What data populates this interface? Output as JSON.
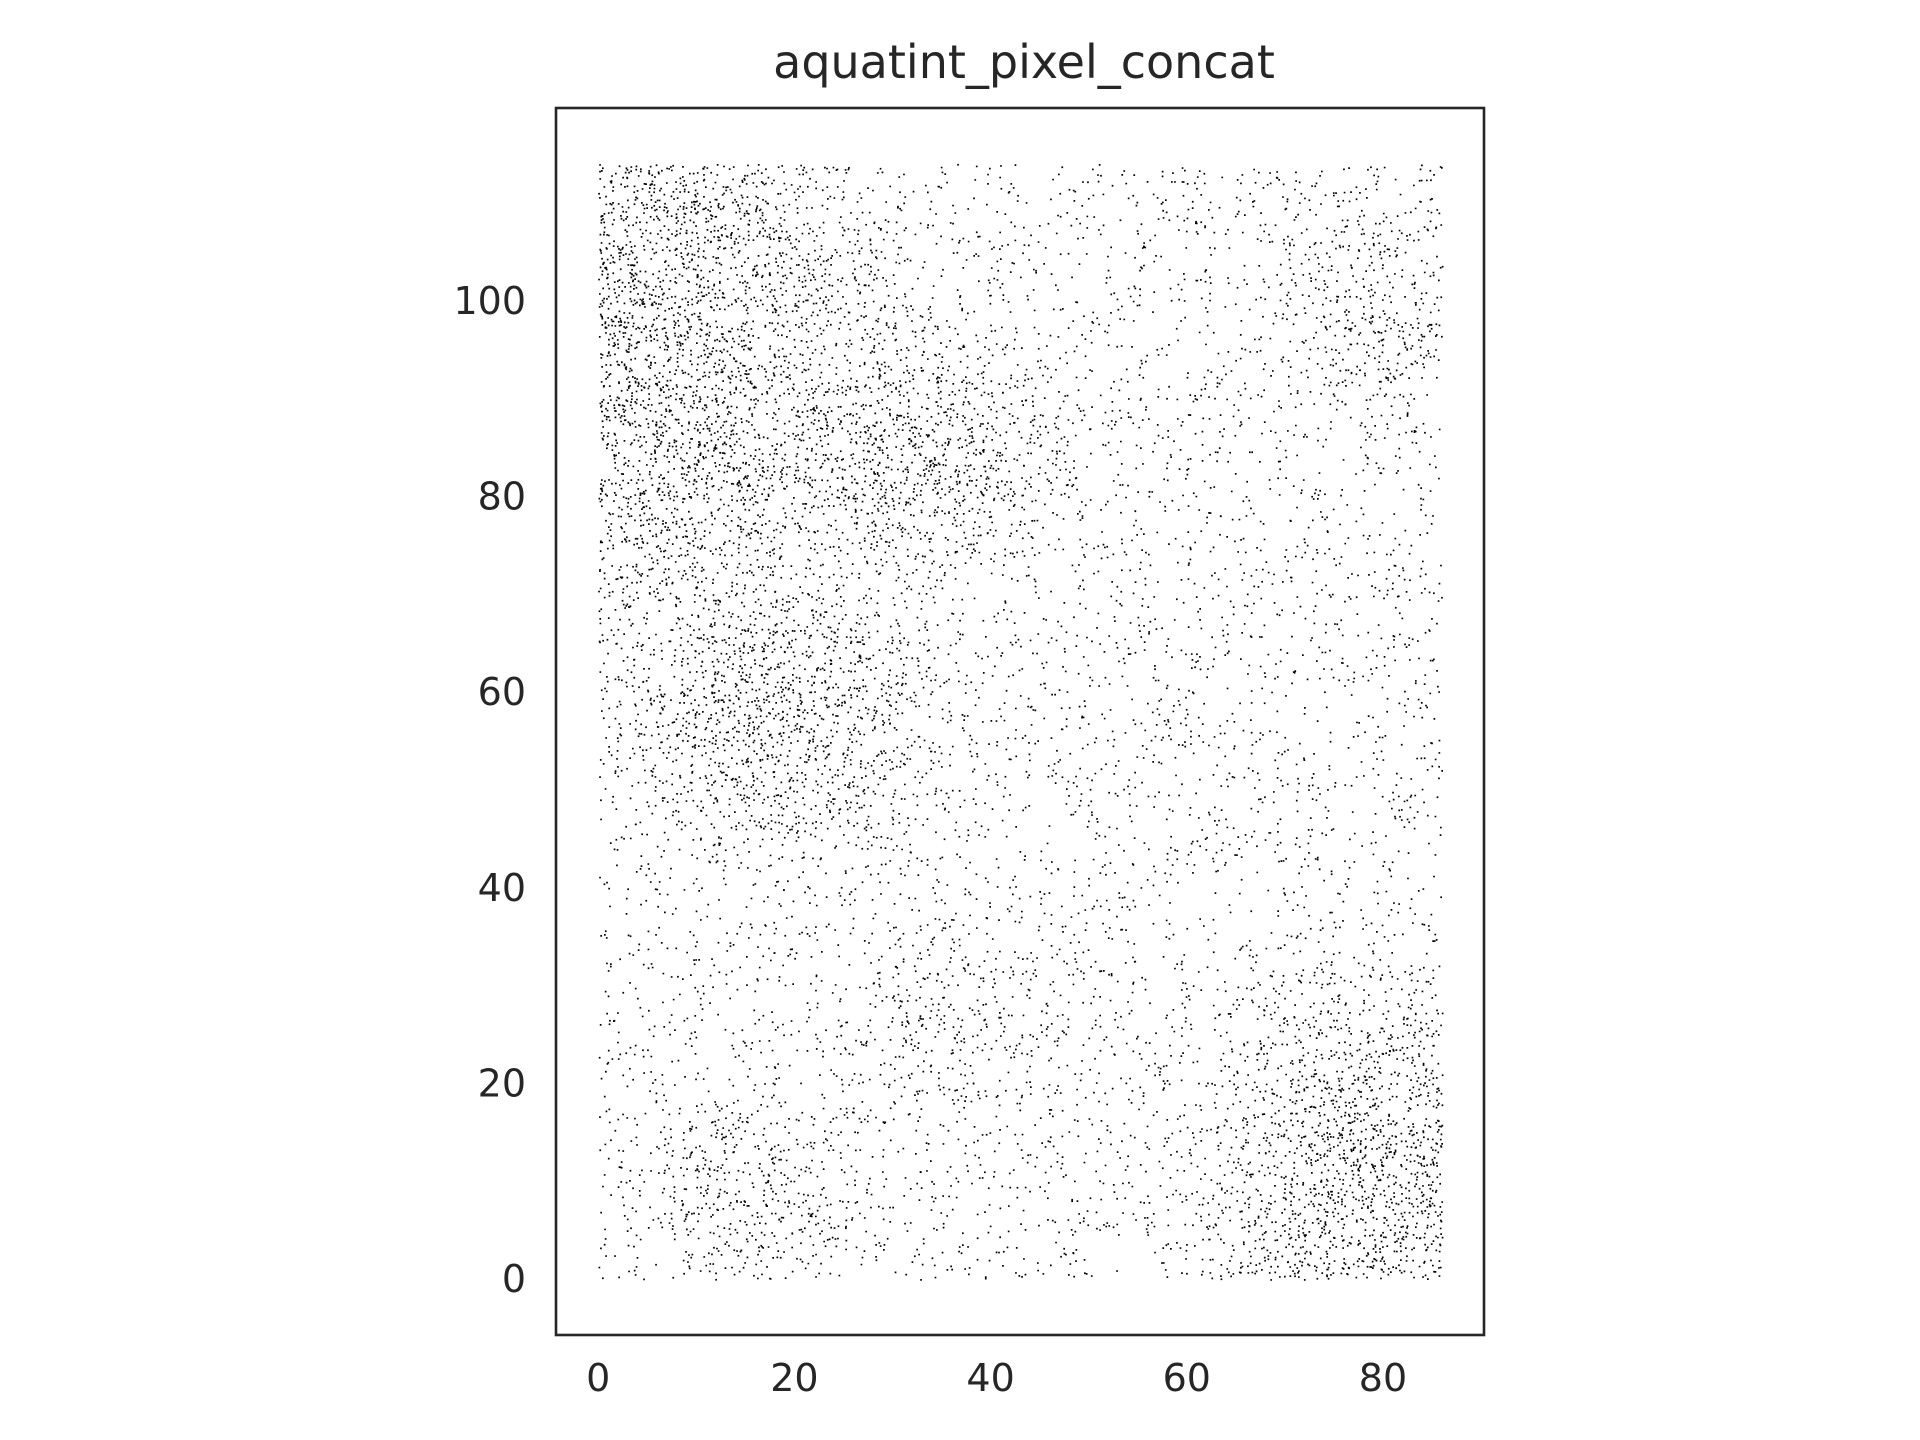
{
  "chart_data": {
    "type": "scatter",
    "title": "aquatint_pixel_concat",
    "xlabel": "",
    "ylabel": "",
    "xlim": [
      -4.3,
      90.3
    ],
    "ylim": [
      -5.7,
      119.7
    ],
    "grid": false,
    "legend": "none",
    "x_ticks": [
      0,
      20,
      40,
      60,
      80
    ],
    "y_ticks": [
      0,
      20,
      40,
      60,
      80,
      100
    ],
    "point_color": "#000000",
    "frame_color": "#262626",
    "data_extent": {
      "x": [
        0,
        86
      ],
      "y": [
        0,
        114
      ]
    },
    "density_field": {
      "description": "stochastic aquatint stipple; point density per unit area varies with tone",
      "base_density": 0.18,
      "dark_regions": [
        {
          "name": "upper-left band",
          "center": [
            8,
            95
          ],
          "sigma": [
            14,
            22
          ],
          "density": 1.0
        },
        {
          "name": "diagonal band",
          "center": [
            30,
            85
          ],
          "sigma": [
            12,
            10
          ],
          "density": 0.85
        },
        {
          "name": "left mid lobe",
          "center": [
            18,
            58
          ],
          "sigma": [
            12,
            10
          ],
          "density": 0.9
        },
        {
          "name": "upper-right corner",
          "center": [
            80,
            100
          ],
          "sigma": [
            10,
            10
          ],
          "density": 0.55
        },
        {
          "name": "lower-right corner",
          "center": [
            80,
            10
          ],
          "sigma": [
            13,
            14
          ],
          "density": 0.95
        },
        {
          "name": "lower-left speckle",
          "center": [
            15,
            8
          ],
          "sigma": [
            9,
            8
          ],
          "density": 0.55
        },
        {
          "name": "lower-middle speckle",
          "center": [
            35,
            28
          ],
          "sigma": [
            10,
            8
          ],
          "density": 0.45
        }
      ]
    }
  }
}
